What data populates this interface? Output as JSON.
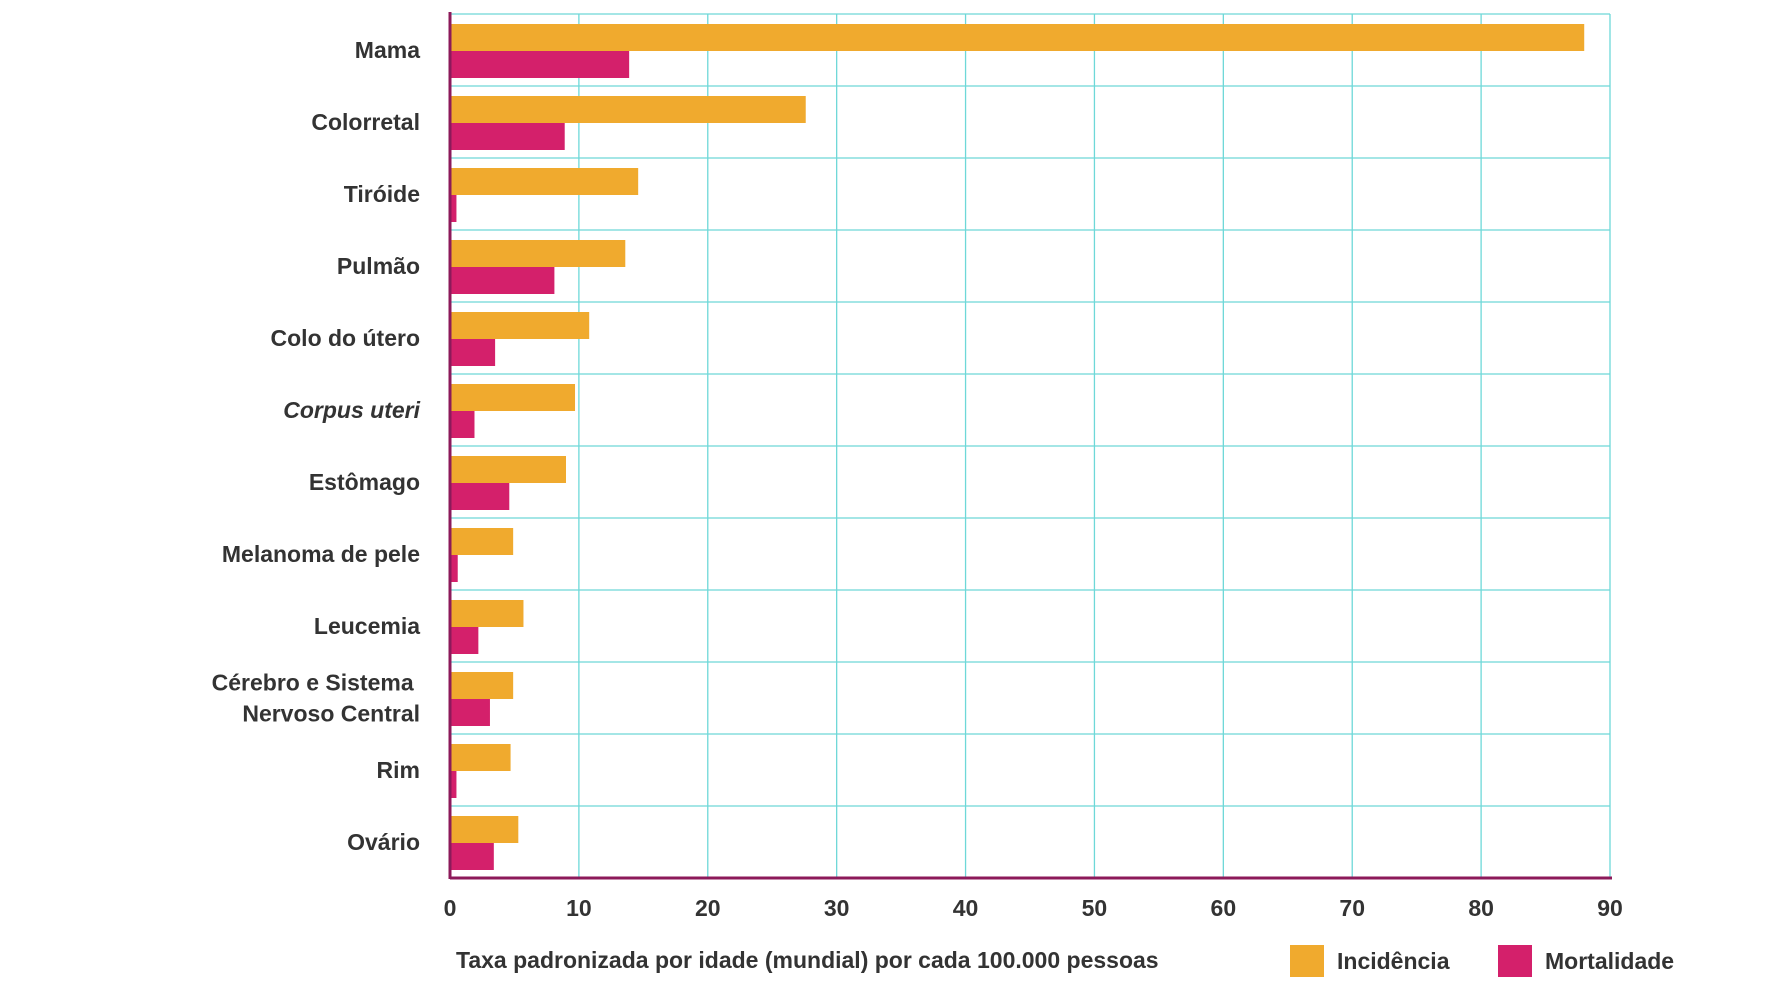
{
  "chart_data": {
    "type": "bar",
    "orientation": "horizontal",
    "categories": [
      "Mama",
      "Colorretal",
      "Tiróide",
      "Pulmão",
      "Colo do útero",
      "Corpus uteri",
      "Estômago",
      "Melanoma de pele",
      "Leucemia",
      "Cérebro e  Sistema Nervoso Central",
      "Rim",
      "Ovário"
    ],
    "category_lines": [
      [
        "Mama"
      ],
      [
        "Colorretal"
      ],
      [
        "Tiróide"
      ],
      [
        "Pulmão"
      ],
      [
        "Colo do útero"
      ],
      [
        "Corpus uteri"
      ],
      [
        "Estômago"
      ],
      [
        "Melanoma de pele"
      ],
      [
        "Leucemia"
      ],
      [
        "Cérebro e  Sistema ",
        "Nervoso Central"
      ],
      [
        "Rim"
      ],
      [
        "Ovário"
      ]
    ],
    "italic_categories": [
      "Corpus uteri"
    ],
    "series": [
      {
        "name": "Incidência",
        "color": "#F0AA2E",
        "values": [
          88.0,
          27.6,
          14.6,
          13.6,
          10.8,
          9.7,
          9.0,
          4.9,
          5.7,
          4.9,
          4.7,
          5.3
        ]
      },
      {
        "name": "Mortalidade",
        "color": "#D4206B",
        "values": [
          13.9,
          8.9,
          0.5,
          8.1,
          3.5,
          1.9,
          4.6,
          0.6,
          2.2,
          3.1,
          0.5,
          3.4
        ]
      }
    ],
    "xlabel": "Taxa padronizada por idade (mundial) por cada 100.000 pessoas",
    "xlim": [
      0,
      90
    ],
    "xticks": [
      0,
      10,
      20,
      30,
      40,
      50,
      60,
      70,
      80,
      90
    ],
    "grid": true,
    "grid_color": "#6ED8D8",
    "axis_color": "#8C1A5A",
    "legend_position": "bottom-right"
  }
}
